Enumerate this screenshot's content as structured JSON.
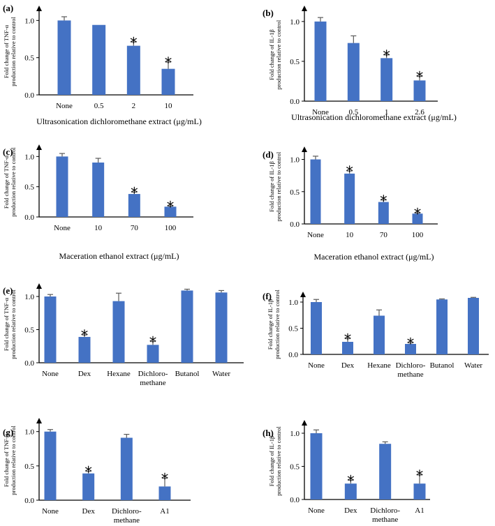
{
  "colors": {
    "bar": "#4472c4",
    "axis": "#000000",
    "error_bar": "#5a5a5a"
  },
  "chart_data": [
    {
      "id": "a",
      "type": "bar",
      "panel_label": "(a)",
      "title": "",
      "ylabel_lines": [
        "Fold change of TNF-α",
        "production relative to control"
      ],
      "xlabel": "Ultrasonication dichloromethane extract (μg/mL)",
      "ylim": [
        0,
        1.2
      ],
      "yticks": [
        0.0,
        0.5,
        1.0
      ],
      "ytick_labels": [
        "0.0",
        "0.5",
        "1.0"
      ],
      "categories": [
        [
          "None"
        ],
        [
          "0.5"
        ],
        [
          "2"
        ],
        [
          "10"
        ]
      ],
      "values": [
        1.0,
        0.94,
        0.66,
        0.35
      ],
      "errors": [
        0.05,
        0.0,
        0.05,
        0.09
      ],
      "significant": [
        false,
        false,
        true,
        true
      ],
      "sig_marker": "*"
    },
    {
      "id": "b",
      "type": "bar",
      "panel_label": "(b)",
      "title": "",
      "ylabel_lines": [
        "Fold change of IL-1β",
        "production relative to control"
      ],
      "xlabel": "Ultrasonication dichloromethane extract (μg/mL)",
      "ylim": [
        0,
        1.2
      ],
      "yticks": [
        0.0,
        0.5,
        1.0
      ],
      "ytick_labels": [
        "0.0",
        "0.5",
        "1.0"
      ],
      "categories": [
        [
          "None"
        ],
        [
          "0.5"
        ],
        [
          "1"
        ],
        [
          "2.6"
        ]
      ],
      "values": [
        1.0,
        0.73,
        0.54,
        0.26
      ],
      "errors": [
        0.05,
        0.09,
        0.04,
        0.05
      ],
      "significant": [
        false,
        false,
        true,
        true
      ],
      "sig_marker": "*"
    },
    {
      "id": "c",
      "type": "bar",
      "panel_label": "(c)",
      "title": "",
      "ylabel_lines": [
        "Fold change of TNF-α",
        "production relative to control"
      ],
      "xlabel": "Maceration ethanol extract (μg/mL)",
      "ylim": [
        0,
        1.2
      ],
      "yticks": [
        0.0,
        0.5,
        1.0
      ],
      "ytick_labels": [
        "0.0",
        "0.5",
        "1.0"
      ],
      "categories": [
        [
          "None"
        ],
        [
          "10"
        ],
        [
          "70"
        ],
        [
          "100"
        ]
      ],
      "values": [
        1.0,
        0.9,
        0.38,
        0.17
      ],
      "errors": [
        0.05,
        0.07,
        0.03,
        0.01
      ],
      "significant": [
        false,
        false,
        true,
        true
      ],
      "sig_marker": "*"
    },
    {
      "id": "d",
      "type": "bar",
      "panel_label": "(d)",
      "title": "",
      "ylabel_lines": [
        "Fold change of IL-1β",
        "production relative to control"
      ],
      "xlabel": "Maceration ethanol extract (μg/mL)",
      "ylim": [
        0,
        1.2
      ],
      "yticks": [
        0.0,
        0.5,
        1.0
      ],
      "ytick_labels": [
        "0.0",
        "0.5",
        "1.0"
      ],
      "categories": [
        [
          "None"
        ],
        [
          "10"
        ],
        [
          "70"
        ],
        [
          "100"
        ]
      ],
      "values": [
        1.0,
        0.78,
        0.34,
        0.16
      ],
      "errors": [
        0.05,
        0.04,
        0.03,
        0.01
      ],
      "significant": [
        false,
        true,
        true,
        true
      ],
      "sig_marker": "*"
    },
    {
      "id": "e",
      "type": "bar",
      "panel_label": "(e)",
      "title": "",
      "ylabel_lines": [
        "Fold change of TNF-α",
        "production relative to control"
      ],
      "xlabel": "",
      "ylim": [
        0,
        1.2
      ],
      "yticks": [
        0.0,
        0.5,
        1.0
      ],
      "ytick_labels": [
        "0.0",
        "0.5",
        "1.0"
      ],
      "categories": [
        [
          "None"
        ],
        [
          "Dex"
        ],
        [
          "Hexane"
        ],
        [
          "Dichloro-",
          "methane"
        ],
        [
          "Butanol"
        ],
        [
          "Water"
        ]
      ],
      "values": [
        1.0,
        0.39,
        0.93,
        0.27,
        1.09,
        1.06
      ],
      "errors": [
        0.03,
        0.03,
        0.12,
        0.05,
        0.02,
        0.03
      ],
      "significant": [
        false,
        true,
        false,
        true,
        false,
        false
      ],
      "sig_marker": "*"
    },
    {
      "id": "f",
      "type": "bar",
      "panel_label": "(f)",
      "title": "",
      "ylabel_lines": [
        "Fold change of IL-1β",
        "production relative to control"
      ],
      "xlabel": "",
      "ylim": [
        0,
        1.2
      ],
      "yticks": [
        0.0,
        0.5,
        1.0
      ],
      "ytick_labels": [
        "0.0",
        "0.5",
        "1.0"
      ],
      "categories": [
        [
          "None"
        ],
        [
          "Dex"
        ],
        [
          "Hexane"
        ],
        [
          "Dichloro-",
          "methane"
        ],
        [
          "Butanol"
        ],
        [
          "Water"
        ]
      ],
      "values": [
        1.0,
        0.24,
        0.74,
        0.2,
        1.05,
        1.08
      ],
      "errors": [
        0.05,
        0.06,
        0.11,
        0.02,
        0.01,
        0.01
      ],
      "significant": [
        false,
        true,
        false,
        true,
        false,
        false
      ],
      "sig_marker": "*"
    },
    {
      "id": "g",
      "type": "bar",
      "panel_label": "(g)",
      "title": "",
      "ylabel_lines": [
        "Fold change of TNF-α",
        "production relative to control"
      ],
      "xlabel": "",
      "ylim": [
        0,
        1.2
      ],
      "yticks": [
        0.0,
        0.5,
        1.0
      ],
      "ytick_labels": [
        "0.0",
        "0.5",
        "1.0"
      ],
      "categories": [
        [
          "None"
        ],
        [
          "Dex"
        ],
        [
          "Dichloro-",
          "methane"
        ],
        [
          "A1"
        ]
      ],
      "values": [
        1.0,
        0.39,
        0.91,
        0.2
      ],
      "errors": [
        0.03,
        0.03,
        0.05,
        0.12
      ],
      "significant": [
        false,
        true,
        false,
        true
      ],
      "sig_marker": "*"
    },
    {
      "id": "h",
      "type": "bar",
      "panel_label": "(h)",
      "title": "",
      "ylabel_lines": [
        "Fold change of IL-1β",
        "production relative to control"
      ],
      "xlabel": "",
      "ylim": [
        0,
        1.2
      ],
      "yticks": [
        0.0,
        0.5,
        1.0
      ],
      "ytick_labels": [
        "0.0",
        "0.5",
        "1.0"
      ],
      "categories": [
        [
          "None"
        ],
        [
          "Dex"
        ],
        [
          "Dichloro-",
          "methane"
        ],
        [
          "A1"
        ]
      ],
      "values": [
        1.0,
        0.24,
        0.84,
        0.24
      ],
      "errors": [
        0.05,
        0.05,
        0.03,
        0.13
      ],
      "significant": [
        false,
        true,
        false,
        true
      ],
      "sig_marker": "*"
    }
  ]
}
